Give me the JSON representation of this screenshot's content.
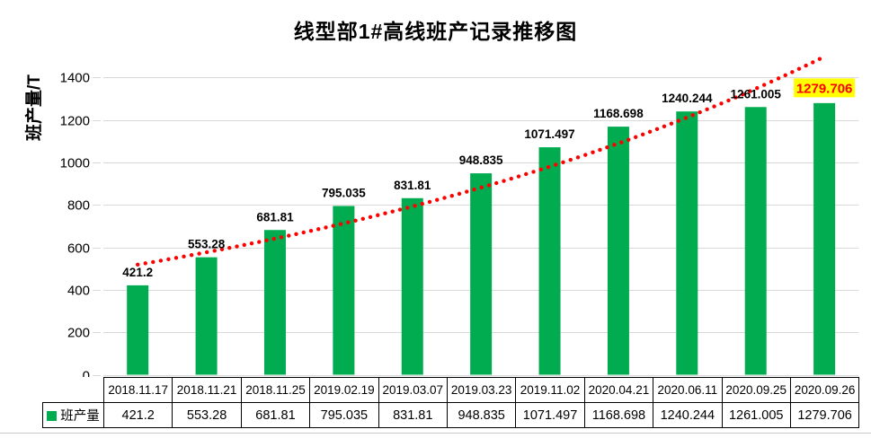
{
  "chart_data": {
    "type": "bar",
    "title": "线型部1#高线班产记录推移图",
    "ylabel": "班产量/T",
    "categories": [
      "2018.11.17",
      "2018.11.21",
      "2018.11.25",
      "2019.02.19",
      "2019.03.07",
      "2019.03.23",
      "2019.11.02",
      "2020.04.21",
      "2020.06.11",
      "2020.09.25",
      "2020.09.26"
    ],
    "series": [
      {
        "name": "班产量",
        "values": [
          421.2,
          553.28,
          681.81,
          795.035,
          831.81,
          948.835,
          1071.497,
          1168.698,
          1240.244,
          1261.005,
          1279.706
        ]
      }
    ],
    "value_labels": [
      "421.2",
      "553.28",
      "681.81",
      "795.035",
      "831.81",
      "948.835",
      "1071.497",
      "1168.698",
      "1240.244",
      "1261.005",
      "1279.706"
    ],
    "ylim": [
      0,
      1500
    ],
    "yticks": [
      0,
      200,
      400,
      600,
      800,
      1000,
      1200,
      1400
    ],
    "grid": true,
    "legend_position": "data-table-left",
    "trendline": {
      "fit": "exponential",
      "style": "dotted"
    },
    "highlight_last_label": true,
    "colors": {
      "bar": "#00AC4F",
      "trendline": "#FF0000",
      "gridline": "#D9D9D9",
      "label": "#000000",
      "tick_label": "#000000",
      "highlight_bg": "#FFFF00",
      "highlight_text": "#FF0000",
      "table_border": "#000000"
    }
  }
}
